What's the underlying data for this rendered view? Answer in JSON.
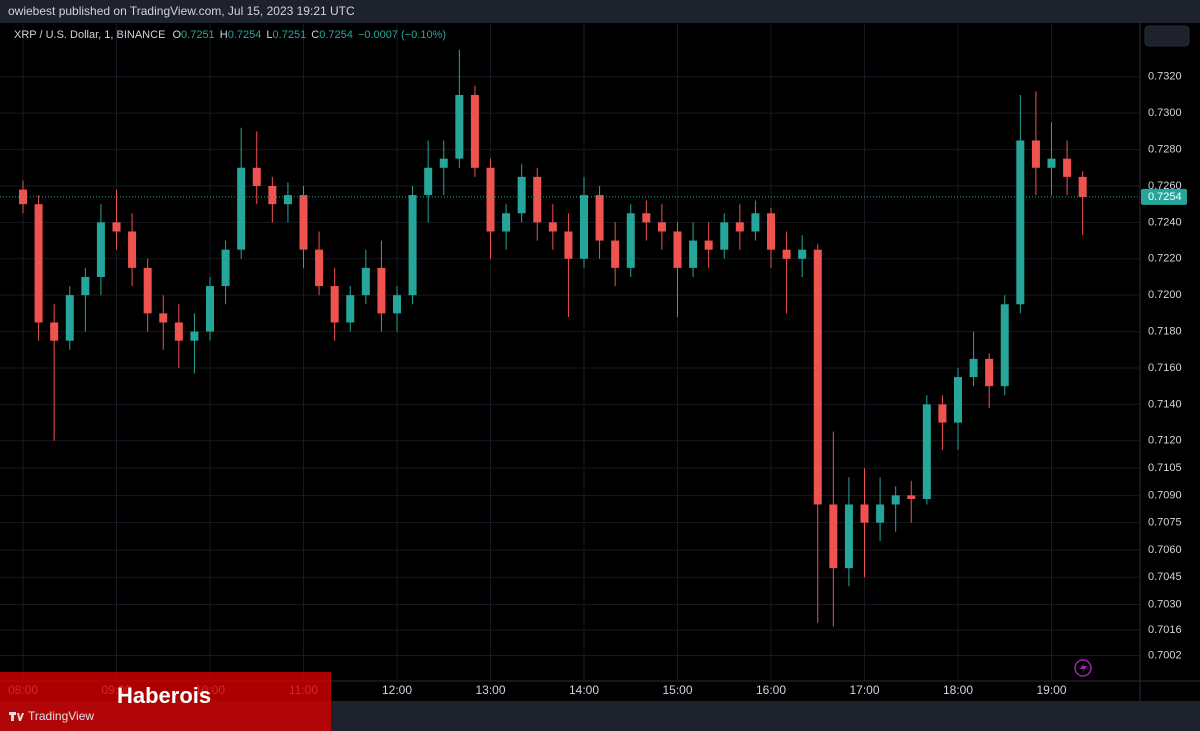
{
  "published": "owiebest published on TradingView.com, Jul 15, 2023 19:21 UTC",
  "watermark": "TradingView",
  "banner": "Haberois",
  "chart_data": {
    "type": "candlestick",
    "title": "XRP / U.S. Dollar, 1, BINANCE",
    "legend_values": [
      {
        "label": "O",
        "value": 0.7251
      },
      {
        "label": "H",
        "value": 0.7254
      },
      {
        "label": "L",
        "value": 0.7251
      },
      {
        "label": "C",
        "value": 0.7254
      }
    ],
    "change": "−0.0007 (−0.10%)",
    "up_color": "#26a69a",
    "down_color": "#ef5350",
    "x": [
      "08:00",
      "08:10",
      "08:20",
      "08:30",
      "08:40",
      "08:50",
      "09:00",
      "09:10",
      "09:20",
      "09:30",
      "09:40",
      "09:50",
      "10:00",
      "10:10",
      "10:20",
      "10:30",
      "10:40",
      "10:50",
      "11:00",
      "11:10",
      "11:20",
      "11:30",
      "11:40",
      "11:50",
      "12:00",
      "12:10",
      "12:20",
      "12:30",
      "12:40",
      "12:50",
      "13:00",
      "13:10",
      "13:20",
      "13:30",
      "13:40",
      "13:50",
      "14:00",
      "14:10",
      "14:20",
      "14:30",
      "14:40",
      "14:50",
      "15:00",
      "15:10",
      "15:20",
      "15:30",
      "15:40",
      "15:50",
      "16:00",
      "16:10",
      "16:20",
      "16:30",
      "16:40",
      "16:50",
      "17:00",
      "17:10",
      "17:20",
      "17:30",
      "17:40",
      "17:50",
      "18:00",
      "18:10",
      "18:20",
      "18:30",
      "18:40",
      "18:50",
      "19:00",
      "19:10",
      "19:20"
    ],
    "open": [
      0.7258,
      0.725,
      0.7185,
      0.7175,
      0.72,
      0.721,
      0.724,
      0.7235,
      0.7215,
      0.719,
      0.7185,
      0.7175,
      0.718,
      0.7205,
      0.7225,
      0.727,
      0.726,
      0.725,
      0.7255,
      0.7225,
      0.7205,
      0.7185,
      0.72,
      0.7215,
      0.719,
      0.72,
      0.7255,
      0.727,
      0.7275,
      0.731,
      0.727,
      0.7235,
      0.7245,
      0.7265,
      0.724,
      0.7235,
      0.722,
      0.7255,
      0.723,
      0.7215,
      0.7245,
      0.724,
      0.7235,
      0.7215,
      0.723,
      0.7225,
      0.724,
      0.7235,
      0.7245,
      0.7225,
      0.722,
      0.7225,
      0.7085,
      0.705,
      0.7085,
      0.7075,
      0.7085,
      0.709,
      0.7088,
      0.714,
      0.713,
      0.7155,
      0.7165,
      0.715,
      0.7195,
      0.7285,
      0.727,
      0.7275,
      0.7265
    ],
    "high": [
      0.7263,
      0.7255,
      0.7195,
      0.7205,
      0.7215,
      0.725,
      0.7258,
      0.7245,
      0.722,
      0.72,
      0.7195,
      0.719,
      0.721,
      0.723,
      0.7292,
      0.729,
      0.7265,
      0.7262,
      0.726,
      0.7235,
      0.7215,
      0.7205,
      0.7225,
      0.723,
      0.7205,
      0.726,
      0.7285,
      0.7285,
      0.7335,
      0.7315,
      0.7275,
      0.725,
      0.7272,
      0.727,
      0.725,
      0.7245,
      0.7265,
      0.726,
      0.724,
      0.725,
      0.7252,
      0.725,
      0.724,
      0.724,
      0.724,
      0.7245,
      0.725,
      0.7252,
      0.7248,
      0.7235,
      0.7233,
      0.7228,
      0.7125,
      0.71,
      0.7105,
      0.71,
      0.7095,
      0.7098,
      0.7145,
      0.7145,
      0.716,
      0.718,
      0.7168,
      0.72,
      0.731,
      0.7312,
      0.7295,
      0.7285,
      0.7268
    ],
    "low": [
      0.7245,
      0.7175,
      0.712,
      0.717,
      0.718,
      0.72,
      0.7225,
      0.7205,
      0.718,
      0.717,
      0.716,
      0.7157,
      0.7175,
      0.7195,
      0.722,
      0.725,
      0.724,
      0.724,
      0.7215,
      0.72,
      0.7175,
      0.718,
      0.7195,
      0.718,
      0.718,
      0.7195,
      0.724,
      0.7255,
      0.727,
      0.7265,
      0.722,
      0.7225,
      0.724,
      0.723,
      0.7225,
      0.7188,
      0.7215,
      0.722,
      0.7205,
      0.721,
      0.723,
      0.7225,
      0.7188,
      0.721,
      0.7215,
      0.722,
      0.7225,
      0.723,
      0.7215,
      0.719,
      0.721,
      0.702,
      0.7018,
      0.704,
      0.7045,
      0.7065,
      0.707,
      0.7075,
      0.7085,
      0.7115,
      0.7115,
      0.715,
      0.7138,
      0.7145,
      0.719,
      0.7255,
      0.7255,
      0.7255,
      0.7233
    ],
    "close": [
      0.725,
      0.7185,
      0.7175,
      0.72,
      0.721,
      0.724,
      0.7235,
      0.7215,
      0.719,
      0.7185,
      0.7175,
      0.718,
      0.7205,
      0.7225,
      0.727,
      0.726,
      0.725,
      0.7255,
      0.7225,
      0.7205,
      0.7185,
      0.72,
      0.7215,
      0.719,
      0.72,
      0.7255,
      0.727,
      0.7275,
      0.731,
      0.727,
      0.7235,
      0.7245,
      0.7265,
      0.724,
      0.7235,
      0.722,
      0.7255,
      0.723,
      0.7215,
      0.7245,
      0.724,
      0.7235,
      0.7215,
      0.723,
      0.7225,
      0.724,
      0.7235,
      0.7245,
      0.7225,
      0.722,
      0.7225,
      0.7085,
      0.705,
      0.7085,
      0.7075,
      0.7085,
      0.709,
      0.7088,
      0.714,
      0.713,
      0.7155,
      0.7165,
      0.715,
      0.7195,
      0.7285,
      0.727,
      0.7275,
      0.7265,
      0.7254
    ],
    "last_price": 0.7254,
    "ylim": [
      0.6988,
      0.7349
    ],
    "yticks": [
      {
        "value": 0.732,
        "label": "0.7320"
      },
      {
        "value": 0.73,
        "label": "0.7300"
      },
      {
        "value": 0.728,
        "label": "0.7280"
      },
      {
        "value": 0.726,
        "label": "0.7260"
      },
      {
        "value": 0.724,
        "label": "0.7240"
      },
      {
        "value": 0.722,
        "label": "0.7220"
      },
      {
        "value": 0.72,
        "label": "0.7200"
      },
      {
        "value": 0.718,
        "label": "0.7180"
      },
      {
        "value": 0.716,
        "label": "0.7160"
      },
      {
        "value": 0.714,
        "label": "0.7140"
      },
      {
        "value": 0.712,
        "label": "0.7120"
      },
      0.7105,
      {
        "value": 0.709,
        "label": "0.7090"
      },
      0.7075,
      {
        "value": 0.706,
        "label": "0.7060"
      },
      0.7045,
      {
        "value": 0.703,
        "label": "0.7030"
      },
      0.7016,
      0.7002
    ],
    "xticks": [
      "08:00",
      "09:00",
      "10:00",
      "11:00",
      "12:00",
      "13:00",
      "14:00",
      "15:00",
      "16:00",
      "17:00",
      "18:00",
      "19:00"
    ],
    "grid": true
  }
}
